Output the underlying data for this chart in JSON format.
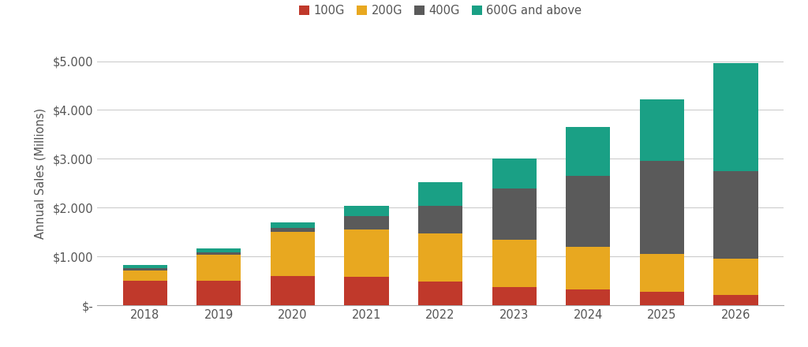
{
  "years": [
    "2018",
    "2019",
    "2020",
    "2021",
    "2022",
    "2023",
    "2024",
    "2025",
    "2026"
  ],
  "series": {
    "100G": [
      500,
      500,
      600,
      580,
      490,
      380,
      330,
      270,
      220
    ],
    "200G": [
      220,
      540,
      900,
      970,
      990,
      960,
      870,
      790,
      730
    ],
    "400G": [
      50,
      50,
      80,
      280,
      560,
      1050,
      1450,
      1900,
      1800
    ],
    "600G and above": [
      50,
      70,
      120,
      200,
      490,
      610,
      1000,
      1260,
      2210
    ]
  },
  "colors": {
    "100G": "#C0392B",
    "200G": "#E8A820",
    "400G": "#5A5A5A",
    "600G and above": "#1AA085"
  },
  "ylabel": "Annual Sales (Millions)",
  "ylim": [
    0,
    5400
  ],
  "yticks": [
    0,
    1000,
    2000,
    3000,
    4000,
    5000
  ],
  "ytick_labels": [
    "$-",
    "$1.000",
    "$2.000",
    "$3.000",
    "$4.000",
    "$5.000"
  ],
  "background_color": "#FFFFFF",
  "grid_color": "#CCCCCC",
  "bar_width": 0.6,
  "legend_order": [
    "100G",
    "200G",
    "400G",
    "600G and above"
  ]
}
